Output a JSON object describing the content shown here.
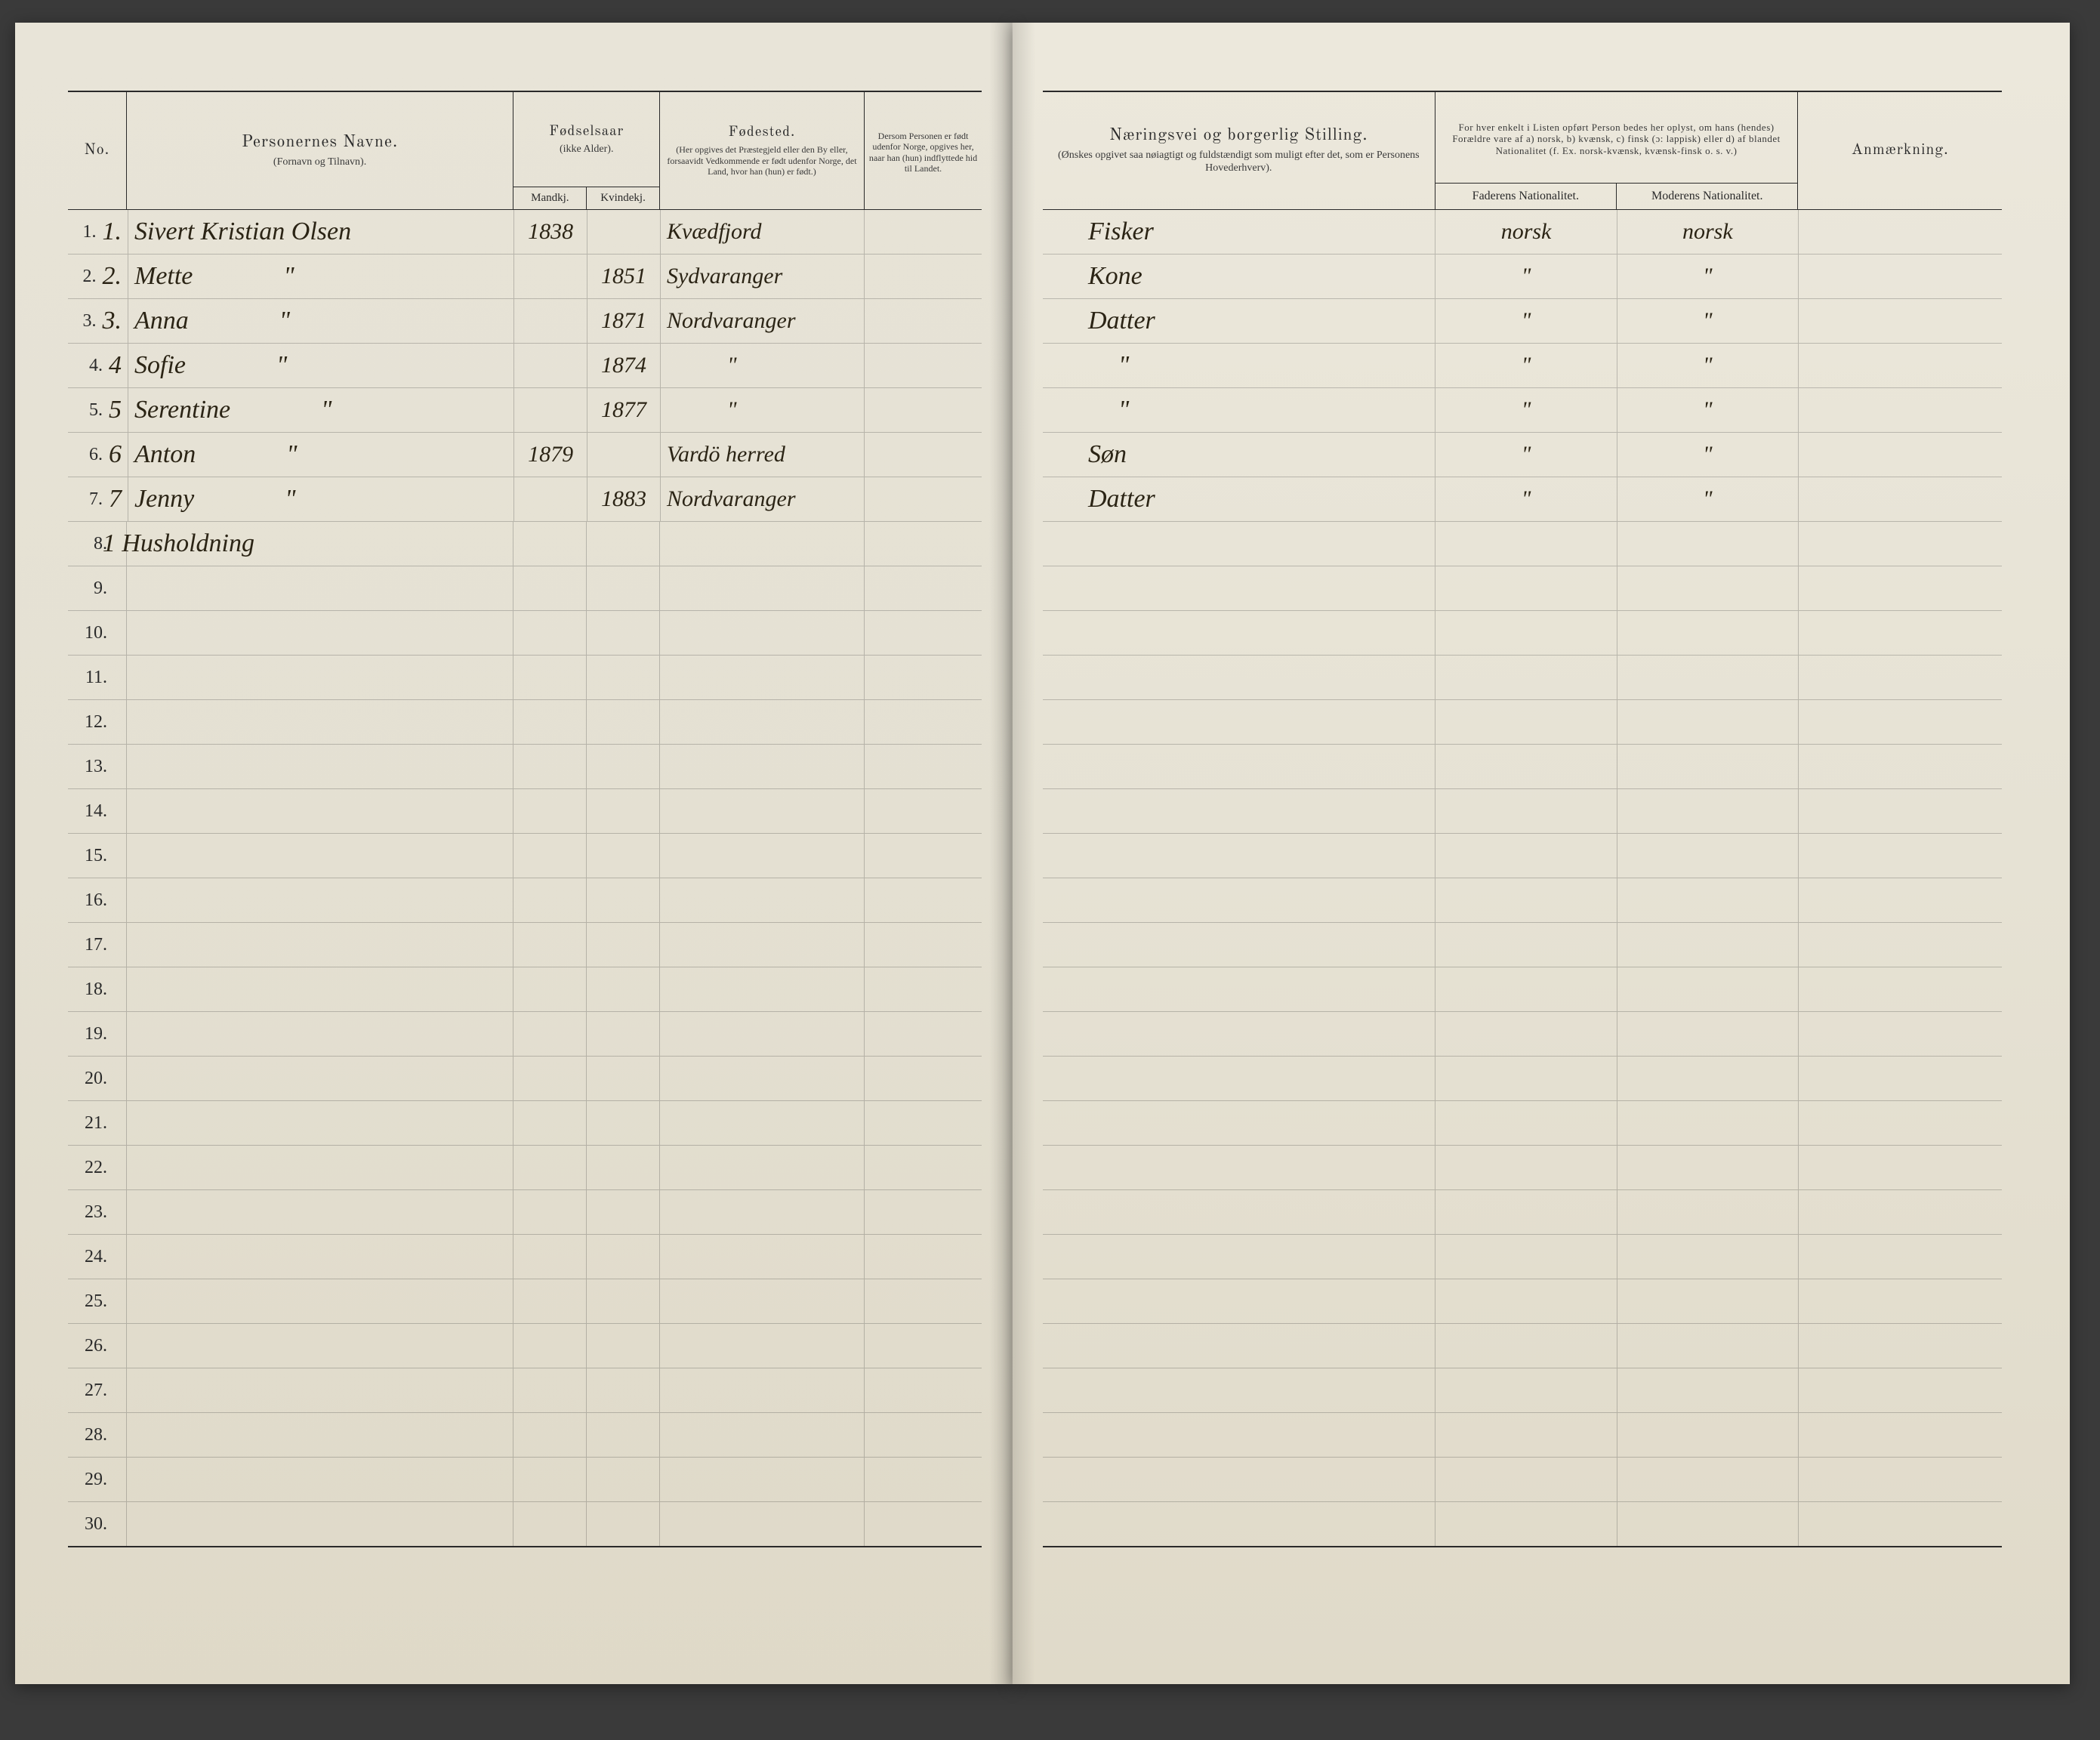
{
  "headers": {
    "left": {
      "no": "No.",
      "name_title": "Personernes Navne.",
      "name_sub": "(Fornavn og Tilnavn).",
      "birth_title": "Fødselsaar",
      "birth_sub": "(ikke Alder).",
      "birth_m": "Mandkj.",
      "birth_f": "Kvindekj.",
      "place_title": "Fødested.",
      "place_sub": "(Her opgives det Præstegjeld eller den By eller, forsaavidt Vedkommende er født udenfor Norge, det Land, hvor han (hun) er født.)",
      "note1": "Dersom Personen er født udenfor Norge, opgives her, naar han (hun) indflyttede hid til Landet."
    },
    "right": {
      "occ_title": "Næringsvei og borgerlig Stilling.",
      "occ_sub": "(Ønskes opgivet saa nøiagtigt og fuldstændigt som muligt efter det, som er Personens Hovederhverv).",
      "nat_title": "For hver enkelt i Listen opført Person bedes her oplyst, om hans (hendes) Forældre vare af a) norsk, b) kvænsk, c) finsk (ɔ: lappisk) eller d) af blandet Nationalitet (f. Ex. norsk-kvænsk, kvænsk-finsk o. s. v.)",
      "nat_f": "Faderens Nationalitet.",
      "nat_m": "Moderens Nationalitet.",
      "rem": "Anmærkning."
    }
  },
  "rows": [
    {
      "pno": "1.",
      "hno": "1.",
      "name": "Sivert Kristian Olsen",
      "birth_m": "1838",
      "birth_f": "",
      "place": "Kvædfjord",
      "occ": "Fisker",
      "natf": "norsk",
      "natm": "norsk"
    },
    {
      "pno": "2.",
      "hno": "2.",
      "name": "Mette",
      "name_ditto": "\"",
      "birth_m": "",
      "birth_f": "1851",
      "place": "Sydvaranger",
      "occ": "Kone",
      "natf": "\"",
      "natm": "\""
    },
    {
      "pno": "3.",
      "hno": "3.",
      "name": "Anna",
      "name_ditto": "\"",
      "birth_m": "",
      "birth_f": "1871",
      "place": "Nordvaranger",
      "occ": "Datter",
      "natf": "\"",
      "natm": "\""
    },
    {
      "pno": "4.",
      "hno": "4",
      "name": "Sofie",
      "name_ditto": "\"",
      "birth_m": "",
      "birth_f": "1874",
      "place": "\"",
      "occ": "\"",
      "natf": "\"",
      "natm": "\""
    },
    {
      "pno": "5.",
      "hno": "5",
      "name": "Serentine",
      "name_ditto": "\"",
      "birth_m": "",
      "birth_f": "1877",
      "place": "\"",
      "occ": "\"",
      "natf": "\"",
      "natm": "\""
    },
    {
      "pno": "6.",
      "hno": "6",
      "name": "Anton",
      "name_ditto": "\"",
      "birth_m": "1879",
      "birth_f": "",
      "place": "Vardö herred",
      "occ": "Søn",
      "natf": "\"",
      "natm": "\""
    },
    {
      "pno": "7.",
      "hno": "7",
      "name": "Jenny",
      "name_ditto": "\"",
      "birth_m": "",
      "birth_f": "1883",
      "place": "Nordvaranger",
      "occ": "Datter",
      "natf": "\"",
      "natm": "\""
    }
  ],
  "household_note": "1 Husholdning",
  "empty_rows_left": [
    "8.",
    "9.",
    "10.",
    "11.",
    "12.",
    "13.",
    "14.",
    "15.",
    "16.",
    "17.",
    "18.",
    "19.",
    "20.",
    "21.",
    "22.",
    "23.",
    "24.",
    "25.",
    "26.",
    "27.",
    "28.",
    "29.",
    "30."
  ],
  "total_rows": 30,
  "colors": {
    "paper": "#e6e2d4",
    "ink_print": "#2a2a2a",
    "ink_hand": "#2b2415",
    "rule": "#2a2a2a"
  }
}
